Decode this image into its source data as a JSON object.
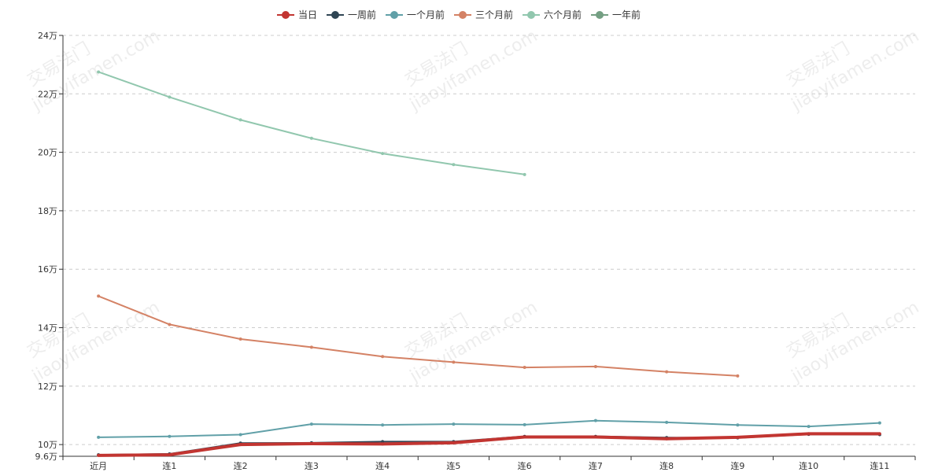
{
  "chart_data": {
    "type": "line",
    "title": "",
    "xlabel": "",
    "ylabel": "",
    "categories": [
      "近月",
      "连1",
      "连2",
      "连3",
      "连4",
      "连5",
      "连6",
      "连7",
      "连8",
      "连9",
      "连10",
      "连11"
    ],
    "y_tick_labels": [
      "9.6万",
      "10万",
      "12万",
      "14万",
      "16万",
      "18万",
      "20万",
      "22万",
      "24万"
    ],
    "y_ticks": [
      96000,
      100000,
      120000,
      140000,
      160000,
      180000,
      200000,
      220000,
      240000
    ],
    "ylim": [
      96000,
      240000
    ],
    "grid": true,
    "legend_position": "top-center",
    "series": [
      {
        "name": "当日",
        "color": "#c23531",
        "stroke_width": 4,
        "values": [
          96300,
          96500,
          100000,
          100300,
          100200,
          100600,
          102600,
          102600,
          102000,
          102500,
          103700,
          103700
        ]
      },
      {
        "name": "一周前",
        "color": "#2f4554",
        "stroke_width": 2,
        "values": [
          96500,
          96800,
          100500,
          100600,
          101000,
          101000,
          102800,
          102800,
          102400,
          102300,
          103500,
          103400
        ]
      },
      {
        "name": "一个月前",
        "color": "#61a0a8",
        "stroke_width": 2,
        "values": [
          102500,
          102800,
          103400,
          107000,
          106700,
          107000,
          106800,
          108200,
          107600,
          106700,
          106200,
          107400
        ]
      },
      {
        "name": "三个月前",
        "color": "#d48265",
        "stroke_width": 2,
        "values": [
          150800,
          141100,
          136100,
          133300,
          130100,
          128200,
          126400,
          126700,
          124900,
          123500,
          null,
          null
        ]
      },
      {
        "name": "六个月前",
        "color": "#91c7ae",
        "stroke_width": 2,
        "values": [
          227500,
          218900,
          211100,
          204800,
          199600,
          195800,
          192400,
          null,
          null,
          null,
          null,
          null
        ]
      },
      {
        "name": "一年前",
        "color": "#749f83",
        "stroke_width": 2,
        "values": [
          null,
          null,
          null,
          null,
          null,
          null,
          null,
          null,
          null,
          null,
          null,
          null
        ]
      }
    ]
  },
  "watermark": {
    "line1": "交易法门",
    "line2": "jiaoyifamen.com"
  }
}
